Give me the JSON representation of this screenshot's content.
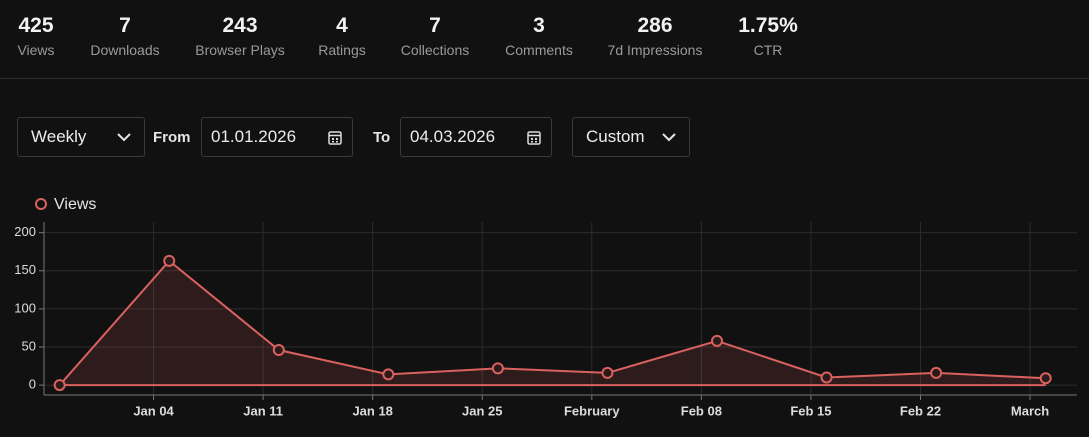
{
  "stats": [
    {
      "value": "425",
      "label": "Views"
    },
    {
      "value": "7",
      "label": "Downloads"
    },
    {
      "value": "243",
      "label": "Browser Plays"
    },
    {
      "value": "4",
      "label": "Ratings"
    },
    {
      "value": "7",
      "label": "Collections"
    },
    {
      "value": "3",
      "label": "Comments"
    },
    {
      "value": "286",
      "label": "7d Impressions"
    },
    {
      "value": "1.75%",
      "label": "CTR"
    }
  ],
  "controls": {
    "interval": "Weekly",
    "from_label": "From",
    "from_date": "01.01.2026",
    "to_label": "To",
    "to_date": "04.03.2026",
    "range": "Custom"
  },
  "chart_data": {
    "type": "line",
    "x": [
      "2025-12-29",
      "2026-01-05",
      "2026-01-12",
      "2026-01-19",
      "2026-01-26",
      "2026-02-02",
      "2026-02-09",
      "2026-02-16",
      "2026-02-23",
      "2026-03-02"
    ],
    "series": [
      {
        "name": "Views",
        "color": "#d9625f",
        "values": [
          0,
          163,
          46,
          14,
          22,
          16,
          58,
          10,
          16,
          9
        ]
      }
    ],
    "xlim": [
      "2025-12-28",
      "2026-03-04"
    ],
    "xticks": [
      {
        "value": "2026-01-04",
        "label": "Jan 04"
      },
      {
        "value": "2026-01-11",
        "label": "Jan 11"
      },
      {
        "value": "2026-01-18",
        "label": "Jan 18"
      },
      {
        "value": "2026-01-25",
        "label": "Jan 25"
      },
      {
        "value": "2026-02-01",
        "label": "February"
      },
      {
        "value": "2026-02-08",
        "label": "Feb 08"
      },
      {
        "value": "2026-02-15",
        "label": "Feb 15"
      },
      {
        "value": "2026-02-22",
        "label": "Feb 22"
      },
      {
        "value": "2026-03-01",
        "label": "March"
      }
    ],
    "ylim": [
      -13,
      214
    ],
    "yticks": [
      0,
      50,
      100,
      150,
      200
    ],
    "grid": true
  }
}
